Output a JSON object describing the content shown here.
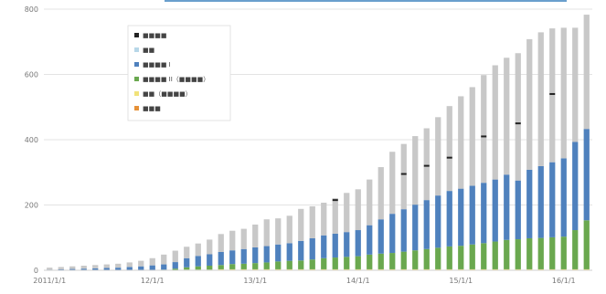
{
  "colors": {
    "background": "#ffffff",
    "gridline": "#e3e3e3",
    "axis": "#cfcfcf",
    "top_border": "#6a9fcd",
    "marker": "#222222"
  },
  "chart_data": {
    "type": "bar",
    "stacked": true,
    "ylim": [
      0,
      800
    ],
    "yticks": [
      0,
      200,
      400,
      600,
      800
    ],
    "ytick_labels": [
      "0",
      "200",
      "400",
      "600",
      "800"
    ],
    "xtick_labels": [
      "2011/1/1",
      "12/1/1",
      "13/1/1",
      "14/1/1",
      "15/1/1",
      "16/1/1"
    ],
    "xtick_indices": [
      0,
      9,
      18,
      27,
      36,
      45
    ],
    "grid": true,
    "legend_position": "top-left",
    "legend": [
      {
        "label": "■■■■",
        "color": "#222222"
      },
      {
        "label": "■■",
        "color": "#b7d7e8"
      },
      {
        "label": "■■■■ I",
        "color": "#4f81bd"
      },
      {
        "label": "■■■■ II（■■■■）",
        "color": "#6aa84f"
      },
      {
        "label": "■■（■■■■）",
        "color": "#f1e27a"
      },
      {
        "label": "■■■",
        "color": "#e69138"
      }
    ],
    "series": [
      {
        "color": "#e69138",
        "values": [
          0,
          0,
          0,
          0,
          0,
          0,
          0,
          0,
          0,
          0,
          0,
          0,
          1,
          1,
          1,
          1,
          1,
          1,
          1,
          1,
          1,
          1,
          1,
          1,
          1,
          1,
          1,
          1,
          1,
          1,
          1,
          1,
          1,
          1,
          1,
          1,
          1,
          1,
          1,
          1,
          1,
          1,
          1,
          1,
          1,
          1,
          1,
          1
        ]
      },
      {
        "color": "#f1e27a",
        "values": [
          0,
          0,
          0,
          0,
          0,
          0,
          0,
          0,
          0,
          0,
          0,
          0,
          1,
          1,
          1,
          2,
          2,
          2,
          2,
          2,
          2,
          2,
          2,
          2,
          2,
          2,
          2,
          2,
          2,
          2,
          2,
          2,
          2,
          2,
          2,
          2,
          2,
          2,
          2,
          2,
          2,
          2,
          2,
          2,
          2,
          2,
          2,
          2
        ]
      },
      {
        "color": "#6aa84f",
        "values": [
          0,
          0,
          0,
          0,
          0,
          0,
          0,
          0,
          0,
          1,
          2,
          5,
          7,
          10,
          12,
          13,
          16,
          17,
          19,
          21,
          24,
          26,
          27,
          30,
          34,
          36,
          38,
          40,
          45,
          48,
          50,
          54,
          58,
          62,
          66,
          70,
          72,
          76,
          80,
          85,
          90,
          92,
          95,
          96,
          98,
          100,
          120,
          150
        ]
      },
      {
        "color": "#4f81bd",
        "values": [
          2,
          3,
          4,
          5,
          6,
          7,
          8,
          10,
          12,
          14,
          16,
          20,
          28,
          32,
          35,
          40,
          42,
          45,
          48,
          50,
          52,
          54,
          60,
          65,
          70,
          73,
          76,
          80,
          90,
          105,
          120,
          130,
          140,
          150,
          160,
          170,
          175,
          180,
          185,
          190,
          200,
          180,
          210,
          220,
          230,
          240,
          270,
          280
        ]
      },
      {
        "color": "#c8c8c8",
        "values": [
          6,
          7,
          8,
          9,
          10,
          11,
          12,
          14,
          17,
          22,
          30,
          35,
          35,
          38,
          45,
          55,
          60,
          62,
          70,
          82,
          80,
          84,
          98,
          98,
          100,
          109,
          120,
          125,
          140,
          160,
          190,
          200,
          210,
          220,
          240,
          260,
          283,
          302,
          330,
          350,
          358,
          390,
          400,
          410,
          410,
          400,
          350,
          350
        ]
      }
    ],
    "markers": {
      "color": "#222222",
      "indices": [
        25,
        31,
        33,
        35,
        38,
        41,
        44
      ],
      "values": [
        215,
        295,
        320,
        345,
        410,
        450,
        540
      ]
    }
  }
}
